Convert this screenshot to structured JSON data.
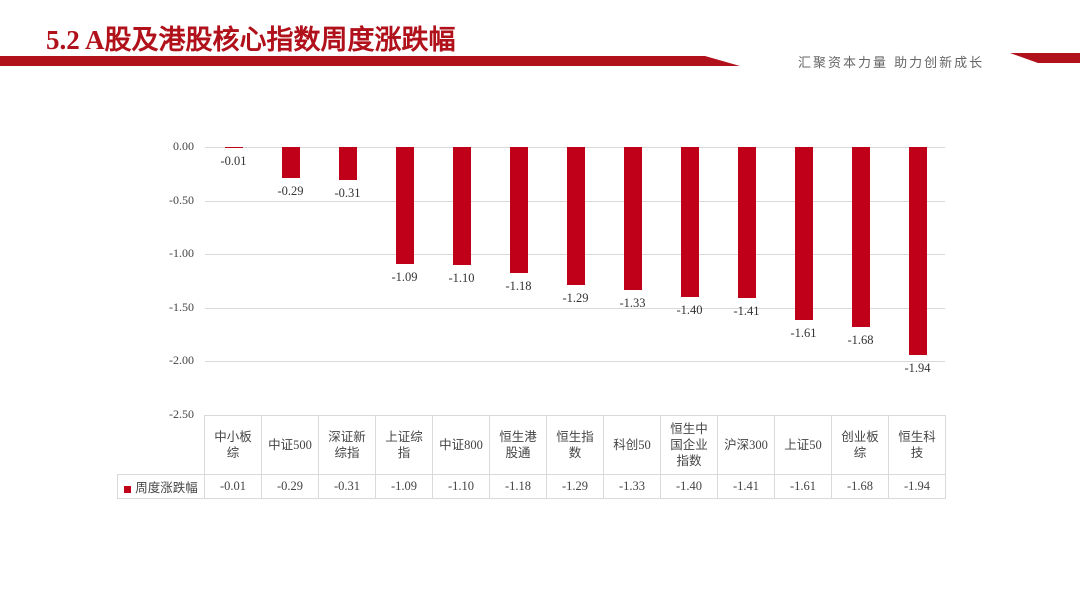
{
  "header": {
    "title": "5.2 A股及港股核心指数周度涨跌幅",
    "slogan": "汇聚资本力量 助力创新成长",
    "accent_color": "#b0111a"
  },
  "chart_data": {
    "type": "bar",
    "title": "",
    "xlabel": "",
    "ylabel": "",
    "ylim": [
      -2.5,
      0
    ],
    "yticks": [
      "0.00",
      "-0.50",
      "-1.00",
      "-1.50",
      "-2.00",
      "-2.50"
    ],
    "grid": true,
    "legend_position": "data-table",
    "categories": [
      "中小板综",
      "中证500",
      "深证新综指",
      "上证综指",
      "中证800",
      "恒生港股通",
      "恒生指数",
      "科创50",
      "恒生中国企业指数",
      "沪深300",
      "上证50",
      "创业板综",
      "恒生科技"
    ],
    "series": [
      {
        "name": "周度涨跌幅",
        "color": "#c00019",
        "values": [
          -0.01,
          -0.29,
          -0.31,
          -1.09,
          -1.1,
          -1.18,
          -1.29,
          -1.33,
          -1.4,
          -1.41,
          -1.61,
          -1.68,
          -1.94
        ],
        "labels": [
          "-0.01",
          "-0.29",
          "-0.31",
          "-1.09",
          "-1.10",
          "-1.18",
          "-1.29",
          "-1.33",
          "-1.40",
          "-1.41",
          "-1.61",
          "-1.68",
          "-1.94"
        ]
      }
    ]
  }
}
